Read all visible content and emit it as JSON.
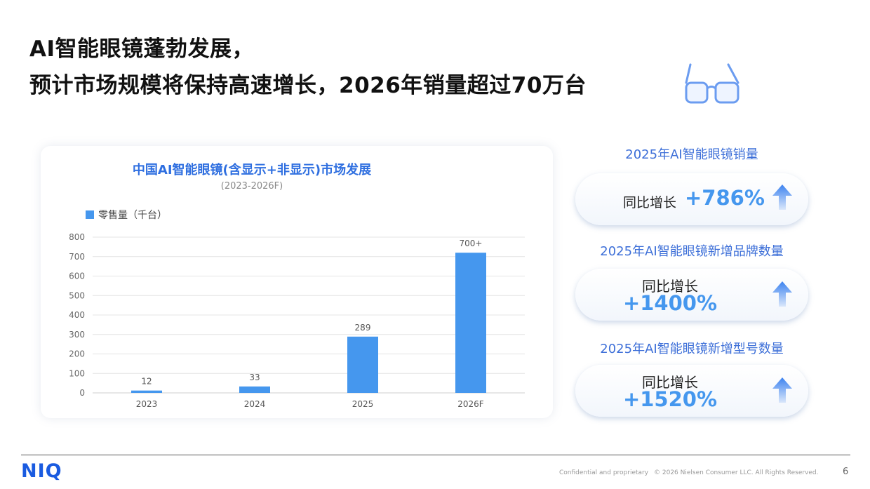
{
  "header": {
    "title_line1": "AI智能眼镜蓬勃发展，",
    "title_line2": "预计市场规模将保持高速增长，2026年销量超过70万台",
    "icon": "glasses-icon"
  },
  "chart_data": {
    "type": "bar",
    "title": "中国AI智能眼镜(含显示+非显示)市场发展",
    "subtitle": "(2023-2026F)",
    "categories": [
      "2023",
      "2024",
      "2025",
      "2026F"
    ],
    "series": [
      {
        "name": "零售量（千台）",
        "values": [
          12,
          33,
          289,
          720
        ],
        "labels": [
          "12",
          "33",
          "289",
          "700+"
        ]
      }
    ],
    "y_ticks": [
      "800",
      "700",
      "600",
      "500",
      "400",
      "300",
      "200",
      "100",
      "0"
    ],
    "ylim": [
      0,
      800
    ],
    "grid": true,
    "legend": "top-left",
    "bar_color": "#4597ee"
  },
  "stats": [
    {
      "heading": "2025年AI智能眼镜销量",
      "label": "同比增长",
      "value": "+786%"
    },
    {
      "heading": "2025年AI智能眼镜新增品牌数量",
      "label": "同比增长",
      "value": "+1400%"
    },
    {
      "heading": "2025年AI智能眼镜新增型号数量",
      "label": "同比增长",
      "value": "+1520%"
    }
  ],
  "footer": {
    "logo": "NIQ",
    "confidential": "Confidential and proprietary",
    "copyright": "© 2026 Nielsen Consumer LLC. All Rights Reserved.",
    "page_number": "6"
  },
  "colors": {
    "accent": "#4597ee",
    "heading_blue": "#2f6fe0",
    "stat_blue": "#3d6fd8"
  }
}
